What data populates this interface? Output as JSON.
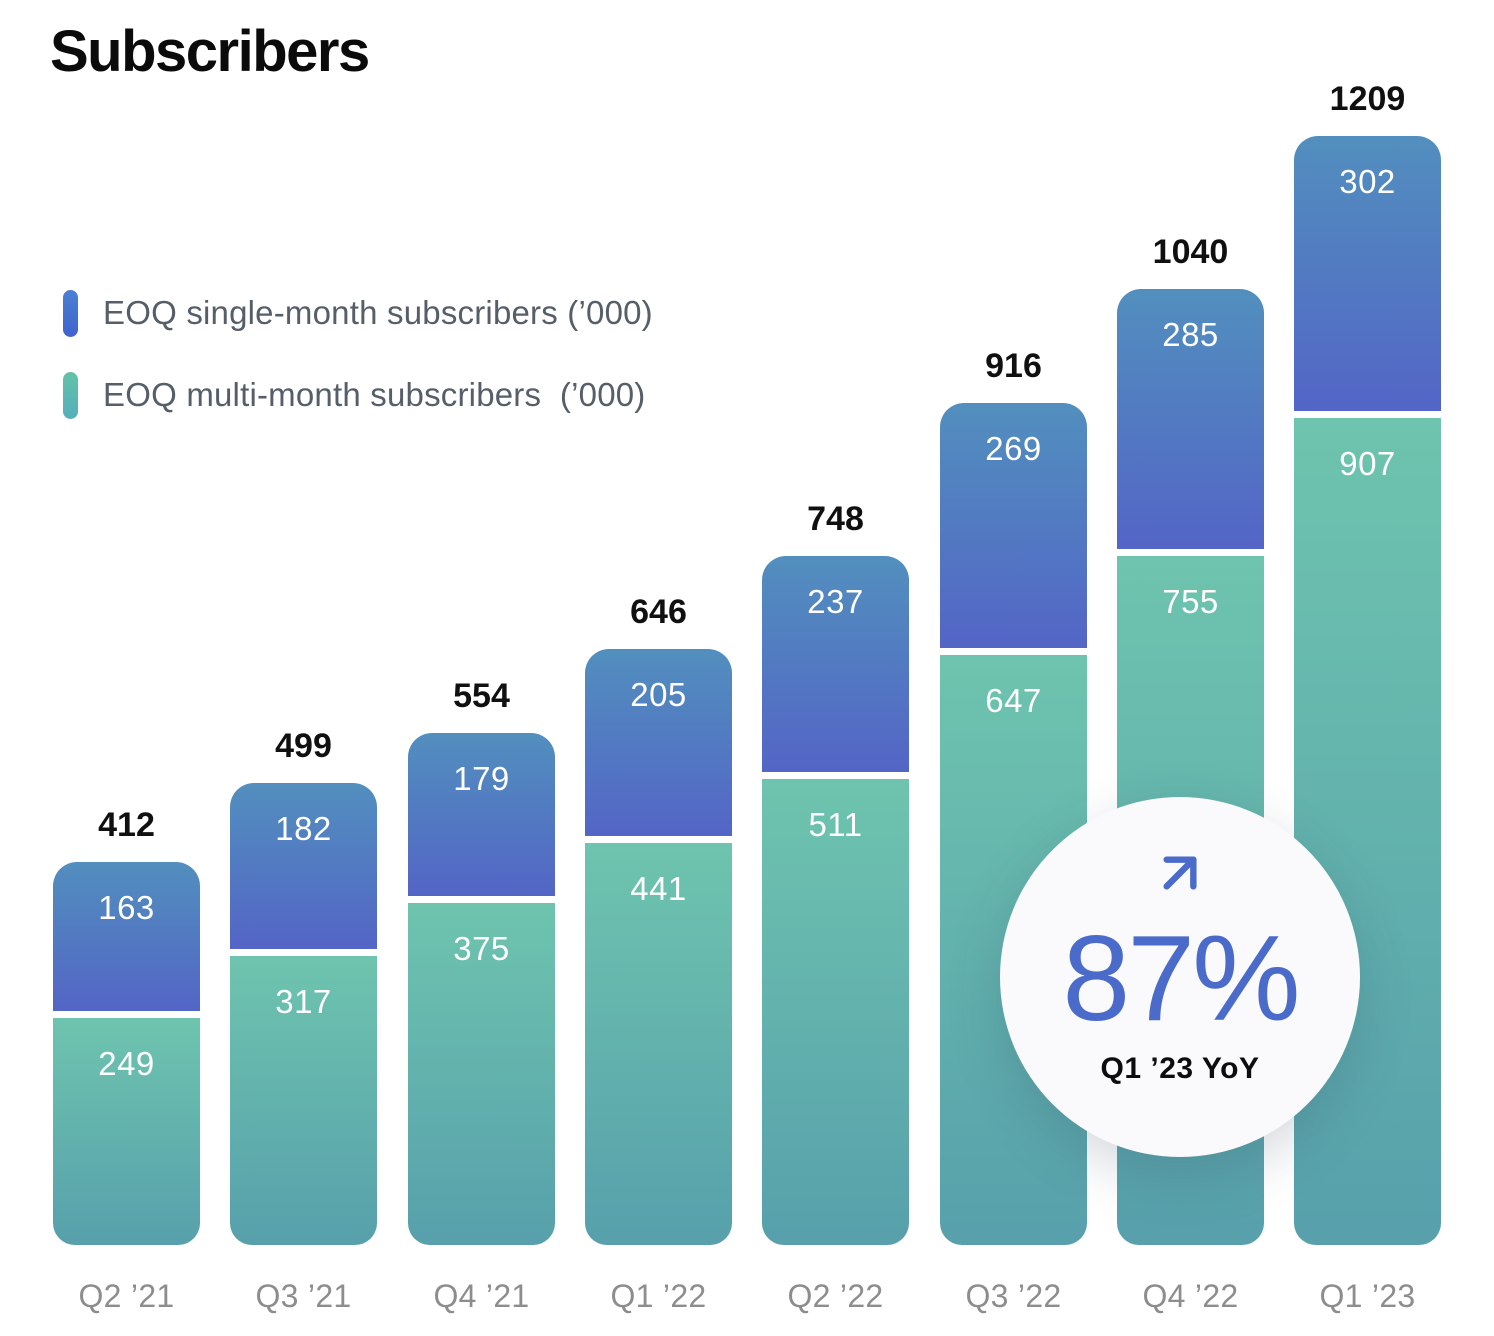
{
  "title": "Subscribers",
  "legend": {
    "items": [
      {
        "label": "EOQ single-month subscribers (’000)",
        "series": "single",
        "swatch_top": "#4b80d4",
        "swatch_bottom": "#3f64cf"
      },
      {
        "label": "EOQ multi-month subscribers  (’000)",
        "series": "multi",
        "swatch_top": "#63c2a8",
        "swatch_bottom": "#55aebb"
      }
    ]
  },
  "badge": {
    "value": "87%",
    "caption": "Q1 ’23 YoY",
    "accent_color": "#4a6bc9",
    "icon": "arrow-up-right"
  },
  "chart_data": {
    "type": "bar",
    "stacked": true,
    "title": "Subscribers",
    "unit": "thousands",
    "grid": false,
    "legend_position": "upper-left",
    "value_labels": "inside-top-and-total-above",
    "categories": [
      "Q2 ’21",
      "Q3 ’21",
      "Q4 ’21",
      "Q1 ’22",
      "Q2 ’22",
      "Q3 ’22",
      "Q4 ’22",
      "Q1 ’23"
    ],
    "series": [
      {
        "name": "EOQ single-month subscribers (’000)",
        "position": "top",
        "color_top": "#528fbe",
        "color_bottom": "#5365c6",
        "values": [
          163,
          182,
          179,
          205,
          237,
          269,
          285,
          302
        ]
      },
      {
        "name": "EOQ multi-month subscribers (’000)",
        "position": "bottom",
        "color_top": "#6ec4ae",
        "color_bottom": "#57a0ac",
        "values": [
          249,
          317,
          375,
          441,
          511,
          647,
          755,
          907
        ]
      }
    ],
    "totals": [
      412,
      499,
      554,
      646,
      748,
      916,
      1040,
      1209
    ],
    "annotation": {
      "text": "87%",
      "caption": "Q1 ’23 YoY",
      "meaning": "year-over-year growth for Q1 ’23"
    }
  }
}
